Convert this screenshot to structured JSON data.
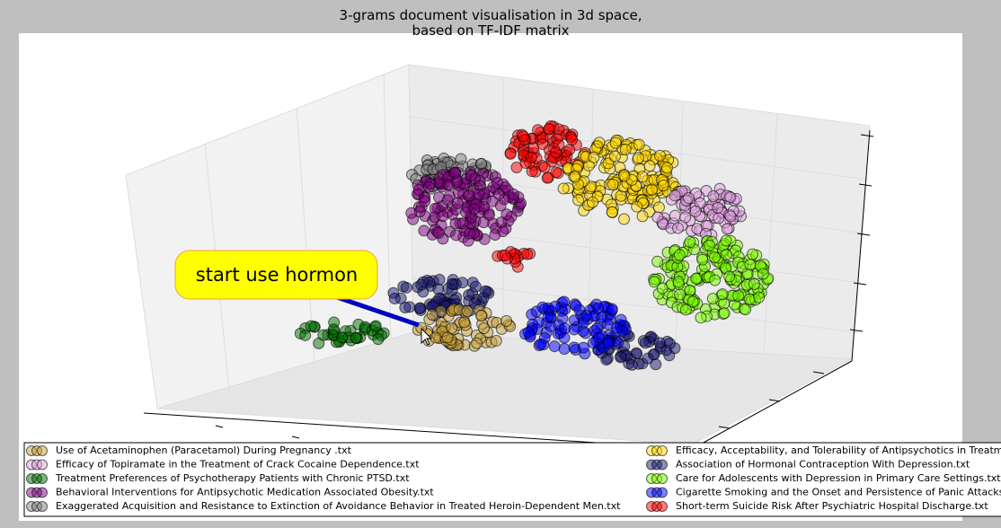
{
  "chart_data": {
    "type": "scatter3d",
    "title": "3-grams document visualisation in 3d space,\nbased on TF-IDF matrix",
    "annotation": "start use hormon",
    "series": [
      {
        "name": "Use of Acetaminophen (Paracetamol) During Pregnancy .txt",
        "color": "#c8a038"
      },
      {
        "name": "Efficacy of Topiramate in the Treatment of Crack Cocaine Dependence.txt",
        "color": "#dda0dd"
      },
      {
        "name": "Treatment Preferences of Psychotherapy Patients with Chronic PTSD.txt",
        "color": "#007000"
      },
      {
        "name": "Behavioral Interventions for Antipsychotic Medication Associated Obesity.txt",
        "color": "#800080"
      },
      {
        "name": "Exaggerated Acquisition and Resistance to Extinction of Avoidance Behavior in Treated Heroin-Dependent Men.txt",
        "color": "#808080"
      },
      {
        "name": "Efficacy, Acceptability, and Tolerability of Antipsychotics in Treatment-Resistant Schizophrenia.txt",
        "color": "#ffd700"
      },
      {
        "name": "Association of Hormonal Contraception With Depression.txt",
        "color": "#191970"
      },
      {
        "name": "Care for Adolescents with Depression in Primary Care Settings.txt",
        "color": "#7cfc00"
      },
      {
        "name": "Cigarette Smoking and the Onset and Persistence of Panic Attacks.txt",
        "color": "#0000ff"
      },
      {
        "name": "Short-term Suicide Risk After Psychiatric Hospital Discharge.txt",
        "color": "#ff0000"
      }
    ]
  }
}
